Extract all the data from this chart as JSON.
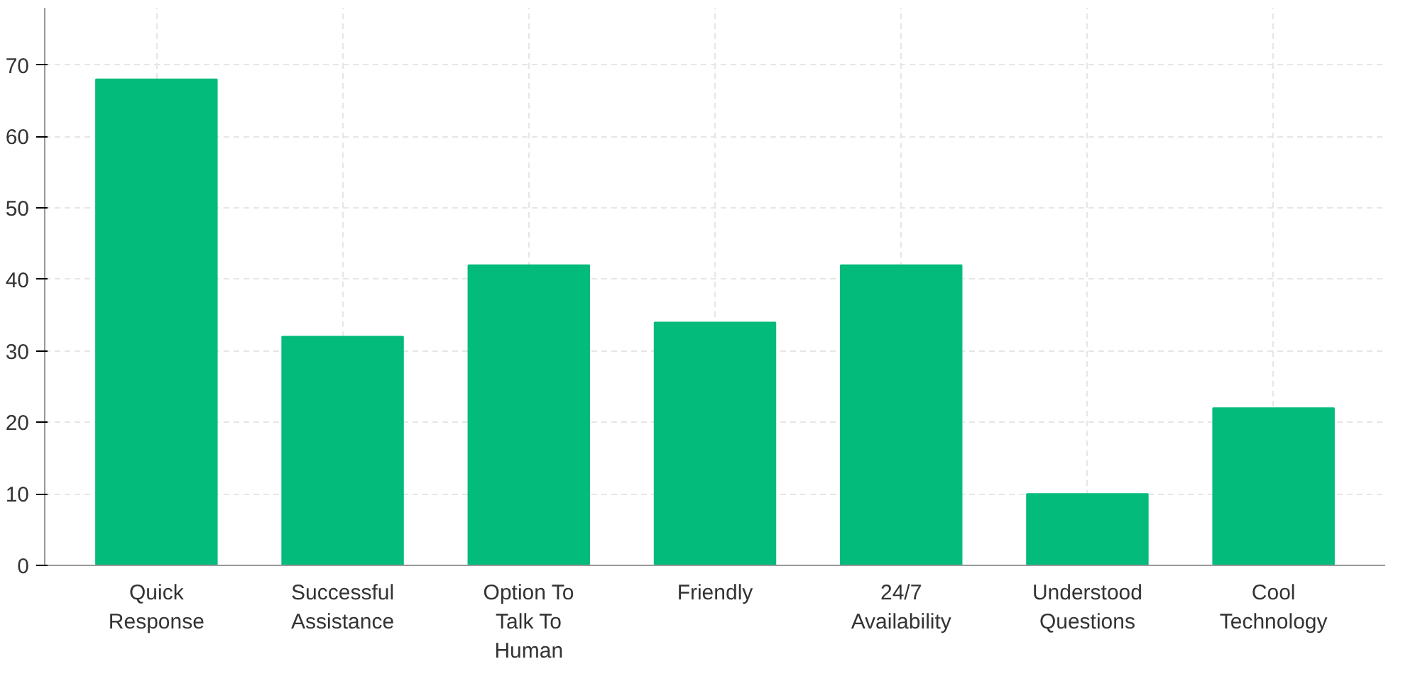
{
  "chart_data": {
    "type": "bar",
    "categories": [
      "Quick Response",
      "Successful Assistance",
      "Option To Talk To Human",
      "Friendly",
      "24/7 Availability",
      "Understood Questions",
      "Cool Technology"
    ],
    "values": [
      68,
      32,
      42,
      34,
      42,
      10,
      22
    ],
    "color": "#03bb7a",
    "ylim": [
      0,
      78
    ],
    "yticks": [
      0,
      10,
      20,
      30,
      40,
      50,
      60,
      70
    ],
    "grid": true
  }
}
